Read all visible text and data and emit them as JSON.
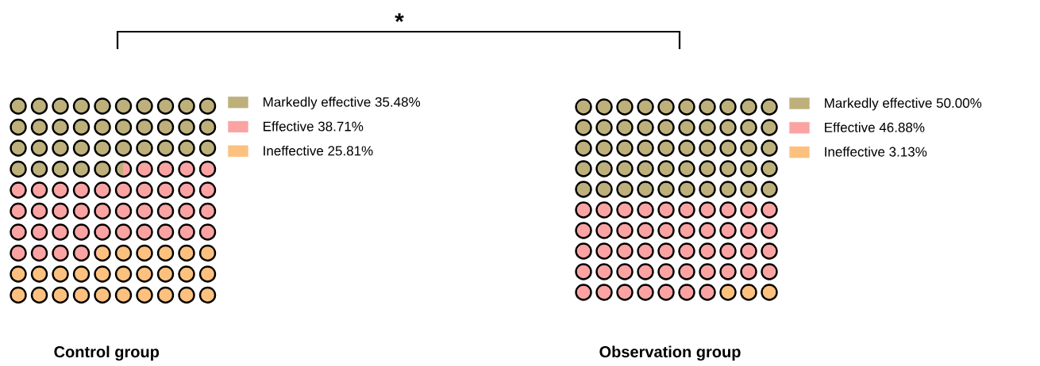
{
  "chart_data": [
    {
      "type": "other",
      "title": "Control group",
      "categories": [
        "Markedly effective",
        "Effective",
        "Ineffective"
      ],
      "values": [
        35.48,
        38.71,
        25.81
      ],
      "value_labels": [
        "35.48%",
        "38.71%",
        "25.81%"
      ],
      "colors": [
        "#bdb07b",
        "#fba3a3",
        "#fdc17f"
      ],
      "annotations": [
        "*"
      ]
    },
    {
      "type": "other",
      "title": "Observation group",
      "categories": [
        "Markedly effective",
        "Effective",
        "Ineffective"
      ],
      "values": [
        50.0,
        46.88,
        3.13
      ],
      "value_labels": [
        "50.00%",
        "46.88%",
        "3.13%"
      ],
      "colors": [
        "#bdb07b",
        "#fba3a3",
        "#fdc17f"
      ]
    }
  ]
}
